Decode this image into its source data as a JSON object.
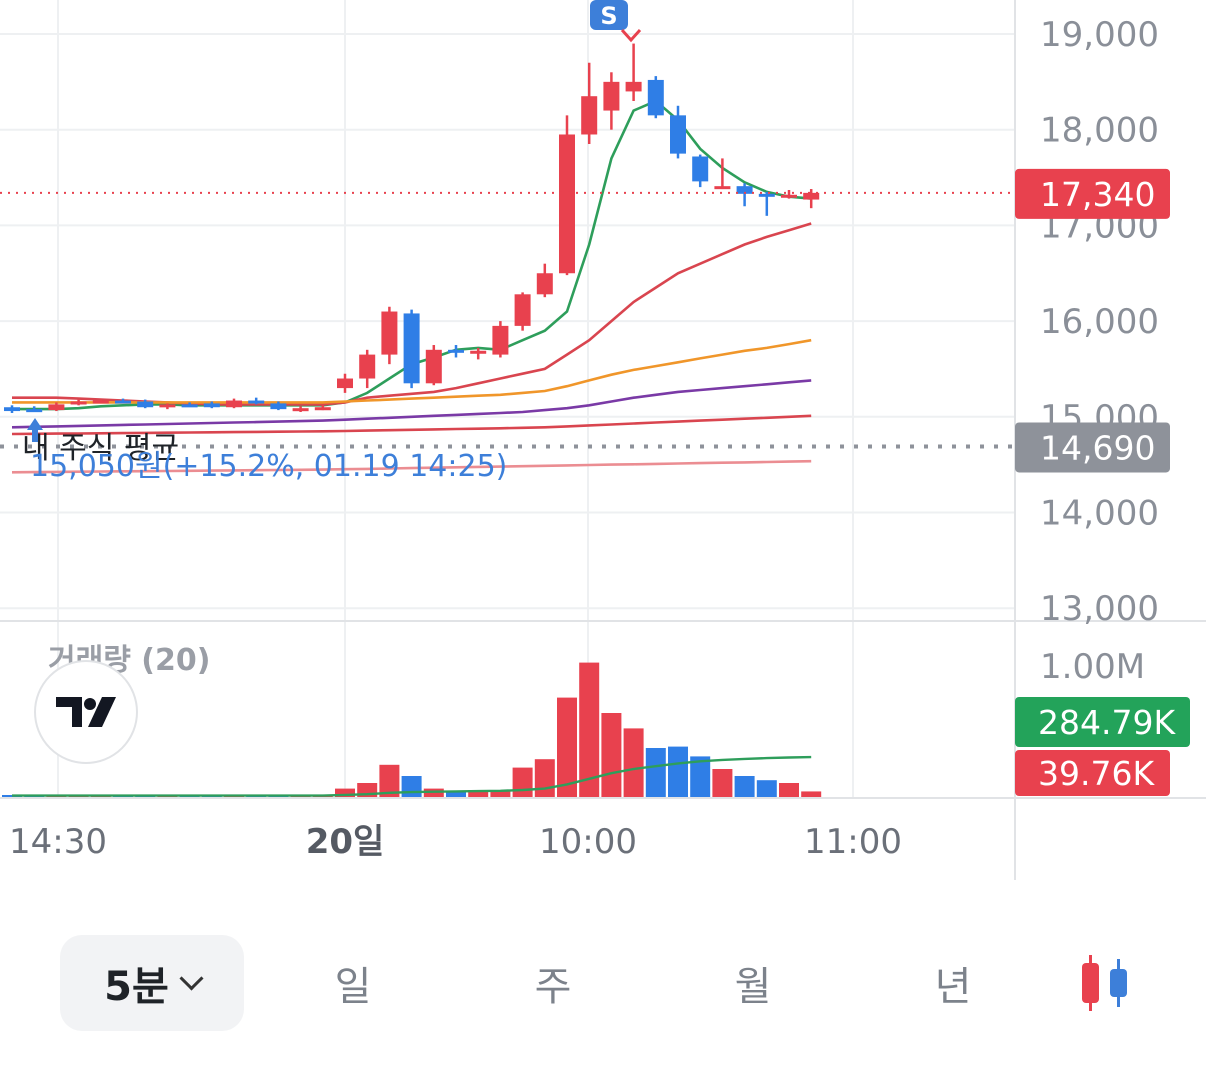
{
  "chart_data": {
    "type": "candlestick",
    "interval": "5분",
    "ylim": [
      13000,
      19300
    ],
    "y_ticks": [
      "19,000",
      "18,000",
      "17,000",
      "16,000",
      "15,000",
      "14,000",
      "13,000"
    ],
    "y_tick_values": [
      19000,
      18000,
      17000,
      16000,
      15000,
      14000,
      13000
    ],
    "x_tick_labels": [
      "14:30",
      "20일",
      "10:00",
      "11:00"
    ],
    "current_price": {
      "value": 17340,
      "label": "17,340",
      "color": "#e8414e"
    },
    "my_average": {
      "value": 14690,
      "label": "14,690",
      "title": "내 주식 평균",
      "color": "#8e929a"
    },
    "buy_marker": {
      "text": "15,050원(+15.2%, 01.19 14:25)",
      "color": "#3d7fd9"
    },
    "sell_marker": {
      "badge": "S",
      "color": "#e8414e"
    },
    "candles": [
      {
        "o": 15100,
        "h": 15120,
        "l": 15040,
        "c": 15060
      },
      {
        "o": 15080,
        "h": 15110,
        "l": 15050,
        "c": 15060
      },
      {
        "o": 15070,
        "h": 15150,
        "l": 15060,
        "c": 15130
      },
      {
        "o": 15140,
        "h": 15180,
        "l": 15120,
        "c": 15160
      },
      {
        "o": 15160,
        "h": 15180,
        "l": 15140,
        "c": 15170
      },
      {
        "o": 15170,
        "h": 15190,
        "l": 15150,
        "c": 15160
      },
      {
        "o": 15160,
        "h": 15180,
        "l": 15090,
        "c": 15100
      },
      {
        "o": 15100,
        "h": 15140,
        "l": 15080,
        "c": 15130
      },
      {
        "o": 15130,
        "h": 15150,
        "l": 15110,
        "c": 15120
      },
      {
        "o": 15140,
        "h": 15160,
        "l": 15090,
        "c": 15100
      },
      {
        "o": 15100,
        "h": 15190,
        "l": 15090,
        "c": 15170
      },
      {
        "o": 15170,
        "h": 15200,
        "l": 15130,
        "c": 15140
      },
      {
        "o": 15140,
        "h": 15160,
        "l": 15070,
        "c": 15080
      },
      {
        "o": 15080,
        "h": 15110,
        "l": 15050,
        "c": 15090
      },
      {
        "o": 15090,
        "h": 15120,
        "l": 15070,
        "c": 15100
      },
      {
        "o": 15300,
        "h": 15450,
        "l": 15250,
        "c": 15400
      },
      {
        "o": 15400,
        "h": 15700,
        "l": 15300,
        "c": 15650
      },
      {
        "o": 15650,
        "h": 16150,
        "l": 15550,
        "c": 16100
      },
      {
        "o": 16080,
        "h": 16120,
        "l": 15300,
        "c": 15350
      },
      {
        "o": 15350,
        "h": 15750,
        "l": 15330,
        "c": 15700
      },
      {
        "o": 15700,
        "h": 15750,
        "l": 15620,
        "c": 15680
      },
      {
        "o": 15680,
        "h": 15720,
        "l": 15600,
        "c": 15690
      },
      {
        "o": 15650,
        "h": 16000,
        "l": 15620,
        "c": 15950
      },
      {
        "o": 15950,
        "h": 16300,
        "l": 15900,
        "c": 16280
      },
      {
        "o": 16280,
        "h": 16600,
        "l": 16250,
        "c": 16500
      },
      {
        "o": 16500,
        "h": 18150,
        "l": 16480,
        "c": 17950
      },
      {
        "o": 17950,
        "h": 18700,
        "l": 17850,
        "c": 18350
      },
      {
        "o": 18200,
        "h": 18600,
        "l": 18000,
        "c": 18500
      },
      {
        "o": 18400,
        "h": 18900,
        "l": 18300,
        "c": 18500
      },
      {
        "o": 18520,
        "h": 18560,
        "l": 18120,
        "c": 18150
      },
      {
        "o": 18150,
        "h": 18250,
        "l": 17700,
        "c": 17750
      },
      {
        "o": 17720,
        "h": 17740,
        "l": 17400,
        "c": 17460
      },
      {
        "o": 17400,
        "h": 17700,
        "l": 17380,
        "c": 17410
      },
      {
        "o": 17410,
        "h": 17440,
        "l": 17200,
        "c": 17330
      },
      {
        "o": 17330,
        "h": 17350,
        "l": 17100,
        "c": 17300
      },
      {
        "o": 17300,
        "h": 17370,
        "l": 17280,
        "c": 17320
      },
      {
        "o": 17270,
        "h": 17380,
        "l": 17180,
        "c": 17340
      }
    ],
    "ma_lines": [
      {
        "name": "MA5",
        "color": "#2e9e5b",
        "values": [
          15080,
          15080,
          15080,
          15090,
          15110,
          15120,
          15130,
          15130,
          15120,
          15120,
          15120,
          15120,
          15120,
          15120,
          15120,
          15150,
          15250,
          15400,
          15550,
          15620,
          15700,
          15720,
          15700,
          15800,
          15900,
          16100,
          16800,
          17700,
          18200,
          18300,
          18100,
          17800,
          17600,
          17450,
          17350,
          17300,
          17280
        ]
      },
      {
        "name": "MA20",
        "color": "#d9454f",
        "values": [
          15200,
          15200,
          15200,
          15190,
          15180,
          15170,
          15160,
          15150,
          15140,
          15130,
          15130,
          15130,
          15130,
          15130,
          15130,
          15150,
          15200,
          15220,
          15240,
          15260,
          15300,
          15350,
          15400,
          15450,
          15500,
          15650,
          15800,
          16000,
          16200,
          16350,
          16500,
          16600,
          16700,
          16800,
          16880,
          16950,
          17020
        ]
      },
      {
        "name": "MA60",
        "color": "#f0962a",
        "values": [
          15150,
          15150,
          15150,
          15150,
          15150,
          15150,
          15150,
          15150,
          15150,
          15150,
          15150,
          15150,
          15150,
          15150,
          15150,
          15160,
          15170,
          15180,
          15190,
          15200,
          15210,
          15220,
          15230,
          15250,
          15270,
          15320,
          15380,
          15440,
          15490,
          15530,
          15570,
          15610,
          15650,
          15690,
          15720,
          15760,
          15800
        ]
      },
      {
        "name": "MA120",
        "color": "#7a3aa6",
        "values": [
          14890,
          14895,
          14900,
          14905,
          14910,
          14915,
          14920,
          14925,
          14930,
          14935,
          14940,
          14945,
          14950,
          14955,
          14960,
          14970,
          14980,
          14990,
          15000,
          15010,
          15020,
          15030,
          15040,
          15050,
          15070,
          15090,
          15120,
          15160,
          15200,
          15230,
          15260,
          15280,
          15300,
          15320,
          15340,
          15360,
          15380
        ]
      },
      {
        "name": "MA200",
        "color": "#d9454f",
        "values": [
          14820,
          14822,
          14824,
          14826,
          14828,
          14830,
          14832,
          14834,
          14836,
          14838,
          14840,
          14842,
          14844,
          14846,
          14848,
          14852,
          14856,
          14860,
          14864,
          14868,
          14872,
          14876,
          14880,
          14885,
          14890,
          14900,
          14910,
          14920,
          14930,
          14940,
          14950,
          14960,
          14970,
          14980,
          14990,
          15000,
          15010
        ]
      },
      {
        "name": "MA240",
        "color": "#eb8d92",
        "values": [
          14420,
          14422,
          14424,
          14426,
          14428,
          14430,
          14432,
          14434,
          14436,
          14438,
          14440,
          14442,
          14444,
          14446,
          14448,
          14452,
          14456,
          14460,
          14464,
          14468,
          14472,
          14476,
          14480,
          14484,
          14488,
          14492,
          14496,
          14500,
          14504,
          14508,
          14512,
          14516,
          14520,
          14524,
          14528,
          14532,
          14536
        ]
      }
    ],
    "volume": {
      "title": "거래량 (20)",
      "ylim": [
        0,
        1100000
      ],
      "y_tick_label": "1.00M",
      "last_ma_label": "284.79K",
      "last_ma_color": "#23a35a",
      "last_volume_label": "39.76K",
      "last_volume_color": "#e8414e",
      "values": [
        8000,
        9000,
        10000,
        8000,
        7000,
        8000,
        9000,
        10000,
        11000,
        9000,
        8000,
        9000,
        10000,
        8000,
        10000,
        60000,
        100000,
        230000,
        150000,
        60000,
        40000,
        50000,
        40000,
        210000,
        270000,
        710000,
        960000,
        600000,
        490000,
        350000,
        360000,
        290000,
        200000,
        150000,
        120000,
        100000,
        39760
      ],
      "ma_values": [
        10000,
        10000,
        10000,
        10000,
        10000,
        10000,
        10000,
        10000,
        10000,
        10000,
        10000,
        10000,
        10000,
        10000,
        10000,
        15000,
        20000,
        30000,
        35000,
        38000,
        40000,
        42000,
        44000,
        50000,
        60000,
        90000,
        130000,
        170000,
        200000,
        220000,
        240000,
        255000,
        265000,
        272000,
        278000,
        282000,
        284790
      ]
    }
  },
  "tabs": [
    {
      "label": "5분",
      "active": true
    },
    {
      "label": "일"
    },
    {
      "label": "주"
    },
    {
      "label": "월"
    },
    {
      "label": "년"
    }
  ]
}
